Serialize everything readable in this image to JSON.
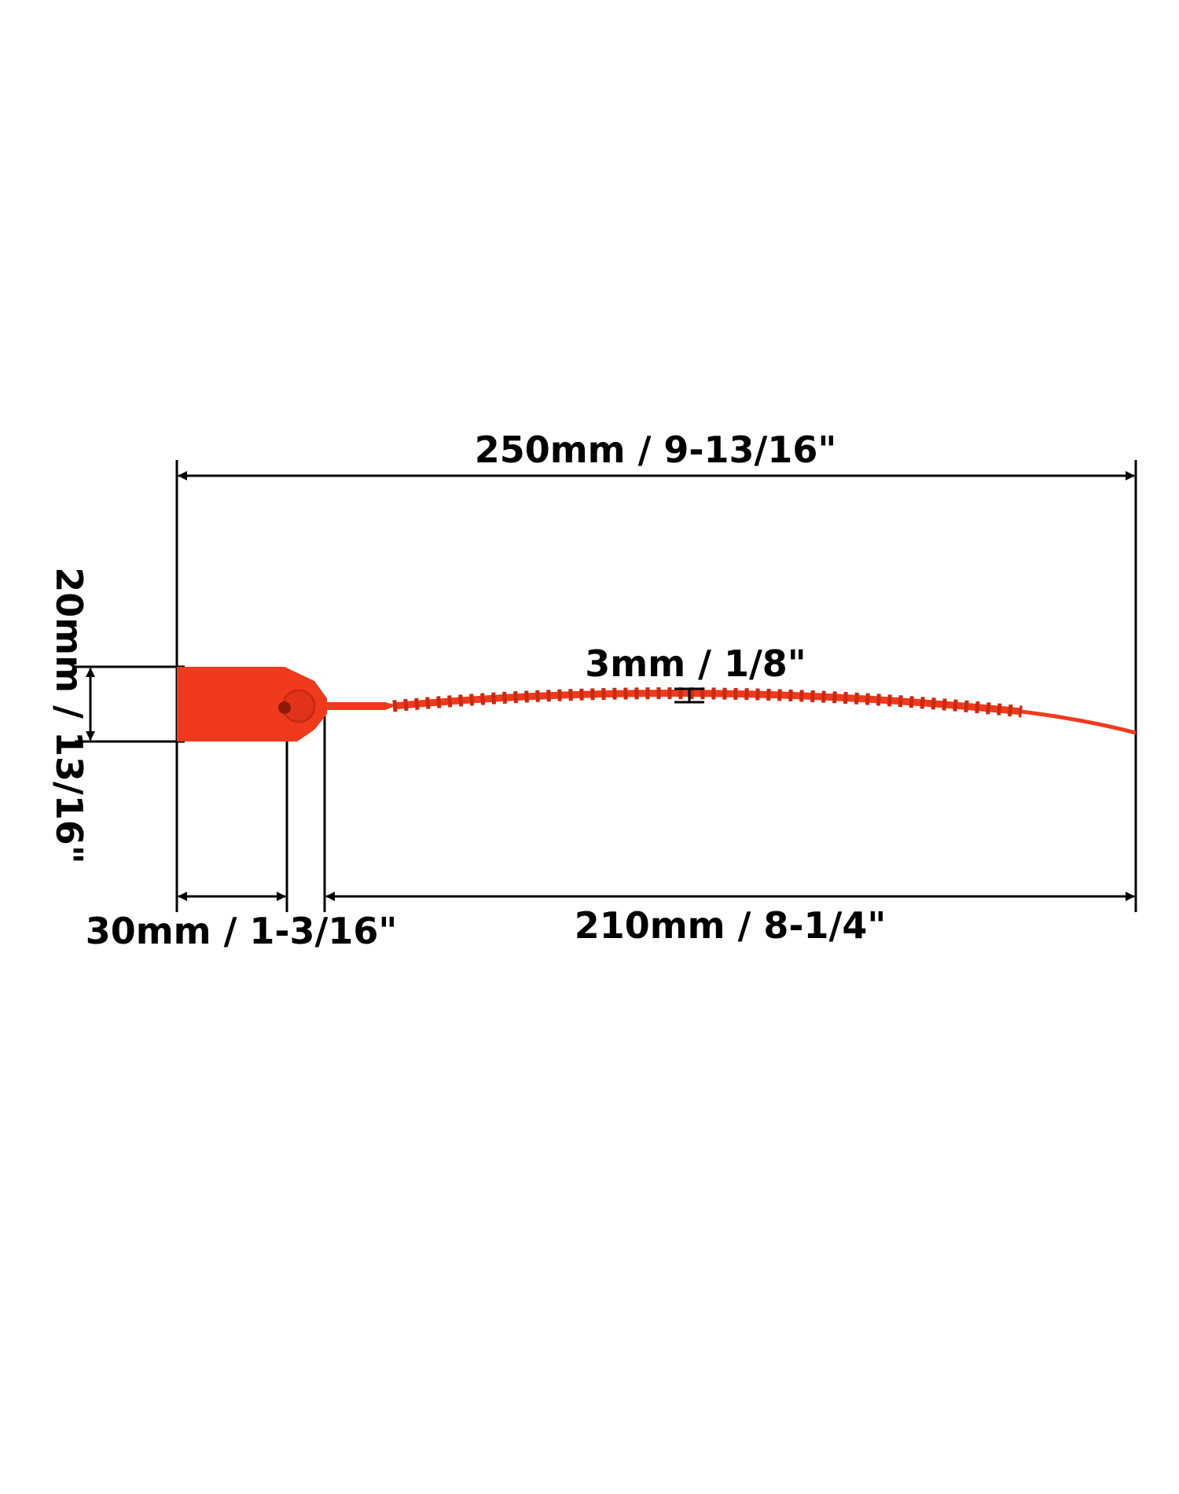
{
  "dimensions": {
    "total_length": "250mm / 9-13/16\"",
    "tag_height": "20mm / 13/16\"",
    "strap_width": "3mm / 1/8\"",
    "tag_length": "30mm / 1-3/16\"",
    "strap_length": "210mm / 8-1/4\""
  },
  "colors": {
    "seal": "#f03a1e",
    "seal_dark": "#c92a12",
    "lines": "#000000",
    "background": "#ffffff"
  }
}
